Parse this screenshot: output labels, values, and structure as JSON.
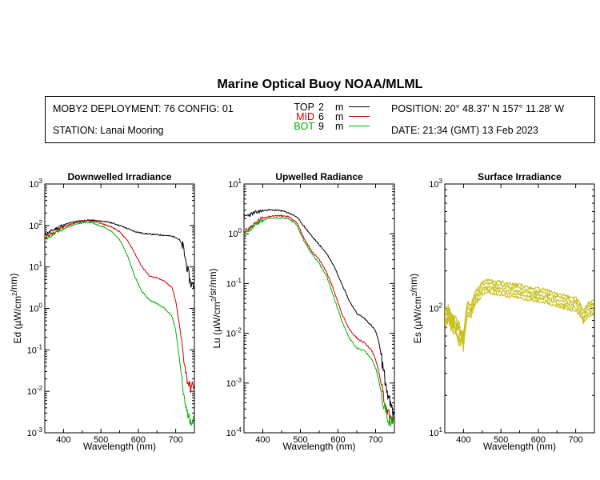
{
  "header": {
    "title": "Marine Optical Buoy NOAA/MLML",
    "deployment": "MOBY2 DEPLOYMENT: 76 CONFIG: 01",
    "station": "STATION: Lanai Mooring",
    "position": "POSITION: 20° 48.37' N   157° 11.28' W",
    "date": "DATE: 21:34 (GMT) 13 Feb 2023"
  },
  "legend": [
    {
      "name": "TOP",
      "depth": "2",
      "unit": "m",
      "color": "#000000"
    },
    {
      "name": "MID",
      "depth": "6",
      "unit": "m",
      "color": "#cc0000"
    },
    {
      "name": "BOT",
      "depth": "9",
      "unit": "m",
      "color": "#00b000"
    }
  ],
  "chart_data": [
    {
      "type": "line",
      "title": "Downwelled Irradiance",
      "xlabel": "Wavelength (nm)",
      "ylabel": "Ed  (µW/cm²/nm)",
      "yscale": "log",
      "xlim": [
        350,
        750
      ],
      "ylim": [
        0.001,
        1000
      ],
      "xticks": [
        "400",
        "500",
        "600",
        "700"
      ],
      "yticks": [
        "10^3",
        "10^2",
        "10^1",
        "10^0",
        "10^-1",
        "10^-2",
        "10^-3"
      ],
      "x": [
        350,
        370,
        390,
        410,
        430,
        450,
        470,
        490,
        510,
        530,
        550,
        570,
        590,
        610,
        630,
        650,
        670,
        690,
        700,
        710,
        720,
        730,
        740,
        750
      ],
      "series": [
        {
          "name": "TOP",
          "color": "#000000",
          "values": [
            60,
            75,
            95,
            110,
            125,
            130,
            135,
            130,
            125,
            115,
            100,
            85,
            72,
            65,
            62,
            60,
            58,
            55,
            52,
            45,
            30,
            10,
            4,
            3.5
          ]
        },
        {
          "name": "MID",
          "color": "#cc0000",
          "values": [
            50,
            65,
            85,
            100,
            115,
            125,
            130,
            120,
            105,
            90,
            70,
            45,
            22,
            10,
            6,
            5.5,
            4.5,
            3.2,
            1.5,
            0.4,
            0.08,
            0.02,
            0.012,
            0.015
          ]
        },
        {
          "name": "BOT",
          "color": "#00b000",
          "values": [
            45,
            58,
            75,
            90,
            105,
            115,
            120,
            105,
            90,
            70,
            45,
            20,
            6,
            2.5,
            1.6,
            1.3,
            1.0,
            0.65,
            0.3,
            0.06,
            0.01,
            0.003,
            0.002,
            0.002
          ]
        }
      ]
    },
    {
      "type": "line",
      "title": "Upwelled Radiance",
      "xlabel": "Wavelength (nm)",
      "ylabel": "Lu  (µW/cm²/sr/nm)",
      "yscale": "log",
      "xlim": [
        350,
        750
      ],
      "ylim": [
        0.0001,
        10
      ],
      "xticks": [
        "400",
        "500",
        "600",
        "700"
      ],
      "yticks": [
        "10^1",
        "10^0",
        "10^-1",
        "10^-2",
        "10^-3",
        "10^-4"
      ],
      "x": [
        350,
        370,
        390,
        410,
        430,
        450,
        470,
        490,
        510,
        530,
        550,
        570,
        590,
        610,
        630,
        650,
        670,
        690,
        700,
        710,
        720,
        730,
        740,
        750
      ],
      "series": [
        {
          "name": "TOP",
          "color": "#000000",
          "values": [
            2.2,
            2.5,
            2.8,
            3.0,
            3.0,
            2.9,
            2.6,
            2.2,
            1.4,
            0.9,
            0.6,
            0.4,
            0.22,
            0.1,
            0.045,
            0.025,
            0.02,
            0.014,
            0.011,
            0.006,
            0.002,
            0.0007,
            0.00035,
            0.0002
          ]
        },
        {
          "name": "MID",
          "color": "#cc0000",
          "values": [
            1.1,
            1.4,
            1.9,
            2.2,
            2.3,
            2.3,
            2.2,
            1.7,
            0.8,
            0.45,
            0.3,
            0.17,
            0.07,
            0.025,
            0.012,
            0.008,
            0.0065,
            0.0045,
            0.003,
            0.0015,
            0.0006,
            0.0003,
            0.00018,
            0.0002
          ]
        },
        {
          "name": "BOT",
          "color": "#00b000",
          "values": [
            1.0,
            1.3,
            1.7,
            2.0,
            2.1,
            2.1,
            2.0,
            1.5,
            0.7,
            0.4,
            0.25,
            0.14,
            0.05,
            0.018,
            0.008,
            0.005,
            0.0045,
            0.003,
            0.002,
            0.001,
            0.0004,
            0.00022,
            0.00015,
            0.00018
          ]
        }
      ]
    },
    {
      "type": "line",
      "title": "Surface Irradiance",
      "xlabel": "Wavelength (nm)",
      "ylabel": "Es  (µW/cm²/nm)",
      "yscale": "log",
      "xlim": [
        350,
        750
      ],
      "ylim": [
        10,
        1000
      ],
      "xticks": [
        "400",
        "500",
        "600",
        "700"
      ],
      "yticks": [
        "10^3",
        "10^2",
        "10^1"
      ],
      "x": [
        350,
        360,
        370,
        380,
        390,
        400,
        410,
        420,
        430,
        440,
        450,
        460,
        480,
        500,
        520,
        540,
        560,
        580,
        600,
        620,
        640,
        660,
        680,
        700,
        710,
        720,
        730,
        740,
        750
      ],
      "series": [
        {
          "name": "Es",
          "color": "#c8c01e",
          "values": [
            80,
            90,
            75,
            70,
            60,
            55,
            100,
            95,
            120,
            130,
            145,
            150,
            148,
            145,
            140,
            138,
            135,
            130,
            128,
            125,
            120,
            115,
            110,
            108,
            100,
            85,
            95,
            100,
            102
          ]
        }
      ]
    }
  ]
}
